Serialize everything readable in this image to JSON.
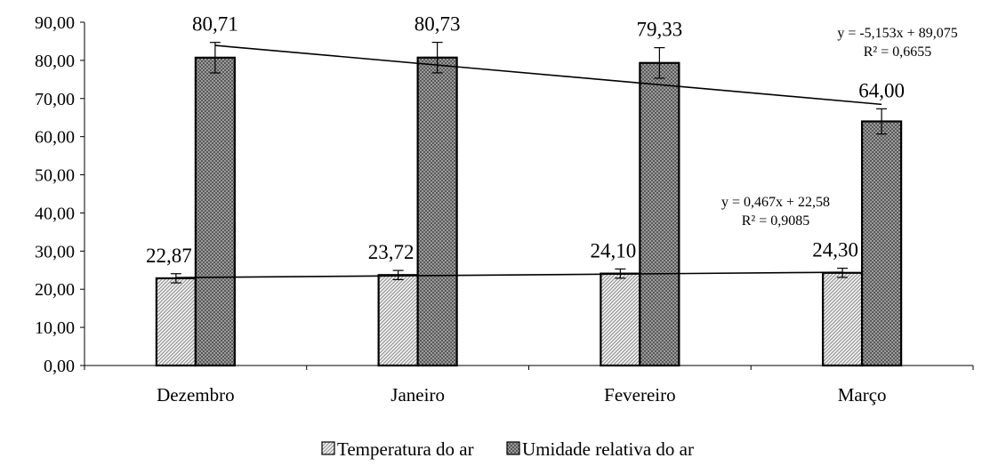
{
  "chart_data": {
    "type": "bar",
    "categories": [
      "Dezembro",
      "Janeiro",
      "Fevereiro",
      "Março"
    ],
    "series": [
      {
        "name": "Temperatura do ar",
        "values": [
          22.87,
          23.72,
          24.1,
          24.3
        ],
        "labels": [
          "22,87",
          "23,72",
          "24,10",
          "24,30"
        ],
        "error": [
          1.2,
          1.2,
          1.2,
          1.2
        ],
        "pattern": "light-diagonal"
      },
      {
        "name": "Umidade relativa do ar",
        "values": [
          80.71,
          80.73,
          79.33,
          64.0
        ],
        "labels": [
          "80,71",
          "80,73",
          "79,33",
          "64,00"
        ],
        "error": [
          4.0,
          4.0,
          4.0,
          3.3
        ],
        "pattern": "dark-checker"
      }
    ],
    "ylim": [
      0,
      90
    ],
    "yticks": [
      "0,00",
      "10,00",
      "20,00",
      "30,00",
      "40,00",
      "50,00",
      "60,00",
      "70,00",
      "80,00",
      "90,00"
    ],
    "trendlines": [
      {
        "series": "Umidade relativa do ar",
        "slope": -5.153,
        "intercept": 89.075,
        "equation": "y = -5,153x + 89,075",
        "r2": "R² = 0,6655"
      },
      {
        "series": "Temperatura do ar",
        "slope": 0.467,
        "intercept": 22.58,
        "equation": "y = 0,467x + 22,58",
        "r2": "R² = 0,9085"
      }
    ],
    "legend_position": "bottom",
    "grid": false
  }
}
